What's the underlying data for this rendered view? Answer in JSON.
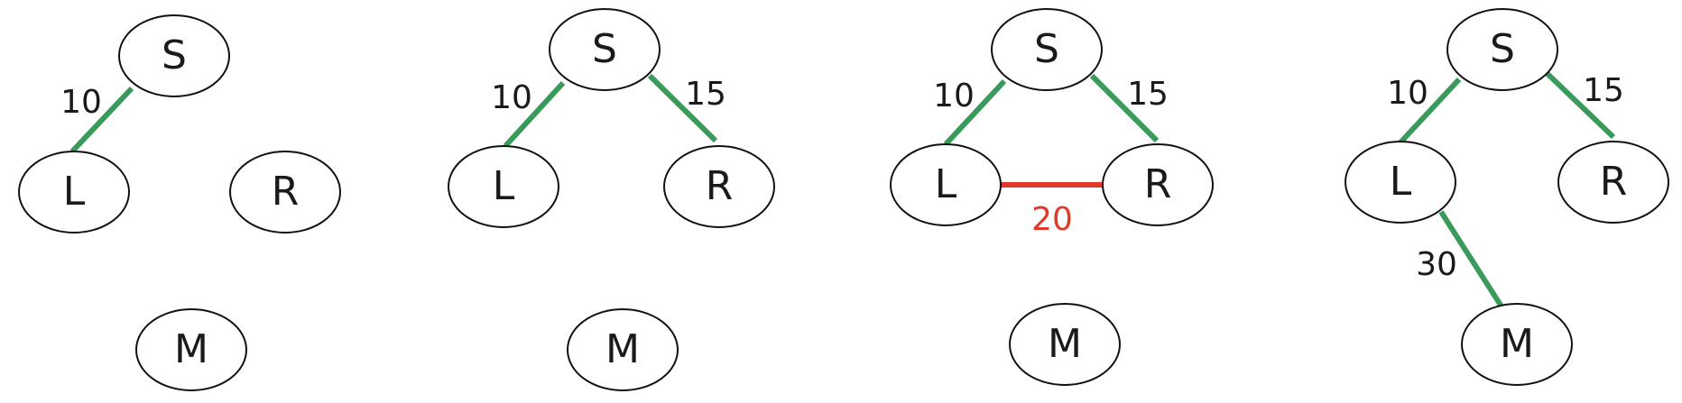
{
  "colors": {
    "kept_edge": "#3a9a5b",
    "rejected_edge": "#e0392a",
    "node_stroke": "#111111",
    "text": "#1a1a1a"
  },
  "panels": [
    {
      "nodes": [
        {
          "id": "S",
          "label": "S"
        },
        {
          "id": "L",
          "label": "L"
        },
        {
          "id": "R",
          "label": "R"
        },
        {
          "id": "M",
          "label": "M"
        }
      ],
      "edges": [
        {
          "from": "S",
          "to": "L",
          "weight": "10",
          "status": "kept"
        }
      ]
    },
    {
      "nodes": [
        {
          "id": "S",
          "label": "S"
        },
        {
          "id": "L",
          "label": "L"
        },
        {
          "id": "R",
          "label": "R"
        },
        {
          "id": "M",
          "label": "M"
        }
      ],
      "edges": [
        {
          "from": "S",
          "to": "L",
          "weight": "10",
          "status": "kept"
        },
        {
          "from": "S",
          "to": "R",
          "weight": "15",
          "status": "kept"
        }
      ]
    },
    {
      "nodes": [
        {
          "id": "S",
          "label": "S"
        },
        {
          "id": "L",
          "label": "L"
        },
        {
          "id": "R",
          "label": "R"
        },
        {
          "id": "M",
          "label": "M"
        }
      ],
      "edges": [
        {
          "from": "S",
          "to": "L",
          "weight": "10",
          "status": "kept"
        },
        {
          "from": "S",
          "to": "R",
          "weight": "15",
          "status": "kept"
        },
        {
          "from": "L",
          "to": "R",
          "weight": "20",
          "status": "rejected"
        }
      ]
    },
    {
      "nodes": [
        {
          "id": "S",
          "label": "S"
        },
        {
          "id": "L",
          "label": "L"
        },
        {
          "id": "R",
          "label": "R"
        },
        {
          "id": "M",
          "label": "M"
        }
      ],
      "edges": [
        {
          "from": "S",
          "to": "L",
          "weight": "10",
          "status": "kept"
        },
        {
          "from": "S",
          "to": "R",
          "weight": "15",
          "status": "kept"
        },
        {
          "from": "L",
          "to": "M",
          "weight": "30",
          "status": "kept"
        }
      ]
    }
  ]
}
